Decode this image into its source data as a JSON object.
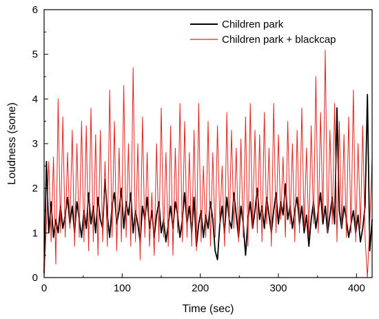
{
  "chart_data": {
    "type": "line",
    "xlabel": "Time (sec)",
    "ylabel": "Loudness (sone)",
    "xlim": [
      0,
      420
    ],
    "ylim": [
      0,
      6
    ],
    "x_ticks": [
      0,
      100,
      200,
      300,
      400
    ],
    "y_ticks": [
      0,
      1,
      2,
      3,
      4,
      5,
      6
    ],
    "grid": false,
    "legend_position": "top-right",
    "series": [
      {
        "name": "Children park",
        "color": "#000000",
        "x": [
          0,
          3,
          6,
          9,
          12,
          15,
          18,
          21,
          24,
          27,
          30,
          33,
          36,
          39,
          42,
          45,
          48,
          51,
          54,
          57,
          60,
          63,
          66,
          69,
          72,
          75,
          78,
          81,
          84,
          87,
          90,
          93,
          96,
          99,
          102,
          105,
          108,
          111,
          114,
          117,
          120,
          123,
          126,
          129,
          132,
          135,
          138,
          141,
          144,
          147,
          150,
          153,
          156,
          159,
          162,
          165,
          168,
          171,
          174,
          177,
          180,
          183,
          186,
          189,
          192,
          195,
          198,
          201,
          204,
          207,
          210,
          213,
          216,
          219,
          222,
          225,
          228,
          231,
          234,
          237,
          240,
          243,
          246,
          249,
          252,
          255,
          258,
          261,
          264,
          267,
          270,
          273,
          276,
          279,
          282,
          285,
          288,
          291,
          294,
          297,
          300,
          303,
          306,
          309,
          312,
          315,
          318,
          321,
          324,
          327,
          330,
          333,
          336,
          339,
          342,
          345,
          348,
          351,
          354,
          357,
          360,
          363,
          366,
          369,
          372,
          375,
          378,
          381,
          384,
          387,
          390,
          393,
          396,
          399,
          402,
          405,
          408,
          411,
          414,
          417,
          420
        ],
        "values": [
          0.1,
          2.6,
          1.0,
          1.7,
          0.9,
          1.3,
          1.0,
          1.6,
          1.1,
          1.4,
          1.8,
          1.2,
          1.6,
          1.0,
          1.7,
          1.3,
          0.9,
          1.5,
          1.1,
          1.9,
          1.2,
          1.6,
          1.0,
          1.8,
          1.3,
          1.1,
          2.2,
          1.4,
          0.9,
          1.6,
          1.9,
          1.2,
          1.5,
          2.0,
          1.1,
          1.7,
          1.4,
          1.9,
          1.0,
          1.5,
          1.2,
          0.8,
          1.6,
          1.3,
          1.8,
          1.1,
          1.5,
          0.9,
          1.4,
          1.7,
          1.0,
          1.3,
          0.8,
          1.2,
          1.6,
          1.1,
          1.7,
          1.4,
          0.9,
          1.3,
          1.9,
          1.2,
          1.6,
          1.0,
          1.8,
          0.7,
          1.2,
          1.5,
          0.9,
          1.4,
          1.1,
          1.7,
          1.3,
          0.6,
          0.4,
          1.2,
          1.6,
          1.0,
          1.8,
          1.3,
          1.1,
          1.9,
          1.4,
          0.9,
          1.6,
          1.2,
          0.5,
          1.3,
          1.7,
          1.1,
          1.5,
          2.0,
          1.3,
          1.6,
          1.1,
          1.8,
          1.4,
          1.0,
          1.5,
          1.9,
          1.2,
          1.7,
          1.4,
          2.1,
          1.3,
          1.6,
          1.1,
          1.5,
          1.8,
          1.2,
          1.6,
          1.0,
          1.4,
          0.7,
          1.3,
          1.7,
          1.1,
          1.5,
          1.9,
          1.2,
          1.6,
          1.0,
          1.4,
          1.8,
          1.2,
          3.8,
          1.5,
          1.1,
          1.6,
          1.3,
          0.9,
          1.2,
          1.5,
          1.0,
          1.4,
          0.8,
          1.1,
          1.6,
          4.1,
          0.6,
          1.3
        ]
      },
      {
        "name": "Children park + blackcap",
        "color": "#e2211c",
        "x": [
          0,
          3,
          6,
          9,
          12,
          15,
          18,
          21,
          24,
          27,
          30,
          33,
          36,
          39,
          42,
          45,
          48,
          51,
          54,
          57,
          60,
          63,
          66,
          69,
          72,
          75,
          78,
          81,
          84,
          87,
          90,
          93,
          96,
          99,
          102,
          105,
          108,
          111,
          114,
          117,
          120,
          123,
          126,
          129,
          132,
          135,
          138,
          141,
          144,
          147,
          150,
          153,
          156,
          159,
          162,
          165,
          168,
          171,
          174,
          177,
          180,
          183,
          186,
          189,
          192,
          195,
          198,
          201,
          204,
          207,
          210,
          213,
          216,
          219,
          222,
          225,
          228,
          231,
          234,
          237,
          240,
          243,
          246,
          249,
          252,
          255,
          258,
          261,
          264,
          267,
          270,
          273,
          276,
          279,
          282,
          285,
          288,
          291,
          294,
          297,
          300,
          303,
          306,
          309,
          312,
          315,
          318,
          321,
          324,
          327,
          330,
          333,
          336,
          339,
          342,
          345,
          348,
          351,
          354,
          357,
          360,
          363,
          366,
          369,
          372,
          375,
          378,
          381,
          384,
          387,
          390,
          393,
          396,
          399,
          402,
          405,
          408,
          411,
          414,
          417,
          420
        ],
        "values": [
          0.0,
          1.2,
          2.6,
          0.8,
          2.7,
          0.3,
          4.0,
          1.0,
          3.6,
          0.9,
          2.8,
          1.1,
          3.3,
          0.7,
          3.0,
          0.9,
          3.5,
          0.8,
          3.4,
          0.6,
          3.8,
          0.8,
          3.2,
          0.5,
          3.3,
          0.8,
          2.6,
          0.7,
          4.2,
          0.9,
          3.5,
          0.6,
          2.9,
          0.8,
          4.3,
          0.9,
          3.0,
          0.7,
          4.7,
          0.8,
          3.0,
          0.4,
          3.6,
          0.9,
          2.8,
          0.7,
          1.9,
          0.5,
          3.0,
          0.8,
          3.8,
          0.9,
          2.8,
          0.7,
          3.4,
          0.5,
          2.9,
          1.0,
          3.9,
          0.8,
          3.5,
          0.9,
          2.8,
          0.7,
          3.3,
          0.6,
          3.9,
          0.8,
          2.5,
          0.9,
          3.5,
          0.7,
          2.8,
          0.9,
          3.4,
          1.2,
          2.5,
          0.7,
          3.7,
          1.0,
          3.3,
          1.1,
          2.9,
          0.8,
          3.1,
          0.9,
          3.6,
          0.7,
          3.9,
          1.1,
          3.3,
          1.0,
          3.2,
          0.8,
          3.7,
          1.2,
          2.9,
          0.7,
          3.9,
          1.0,
          3.2,
          1.3,
          2.7,
          0.9,
          3.5,
          1.2,
          3.0,
          0.8,
          3.3,
          1.0,
          3.8,
          1.1,
          2.9,
          0.9,
          3.4,
          1.2,
          4.5,
          1.0,
          3.7,
          1.3,
          5.1,
          1.0,
          3.3,
          1.2,
          3.9,
          0.8,
          3.5,
          1.1,
          3.2,
          0.9,
          3.6,
          1.0,
          4.2,
          0.8,
          3.0,
          1.1,
          3.4,
          0.9,
          0.0,
          1.2,
          2.7
        ]
      }
    ]
  }
}
